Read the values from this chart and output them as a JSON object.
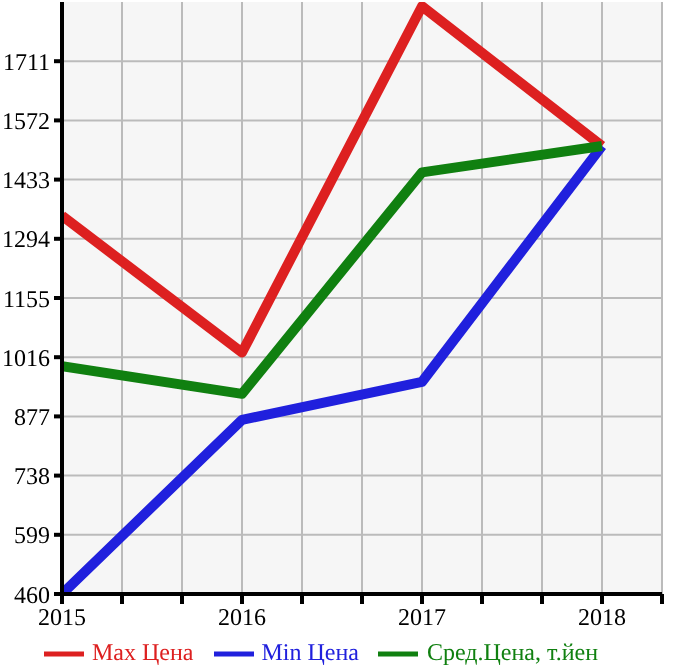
{
  "chart_data": {
    "type": "line",
    "x": [
      2015,
      2016,
      2017,
      2018
    ],
    "series": [
      {
        "name": "Max Цена",
        "color": "#dd2020",
        "values": [
          1348,
          1027,
          1840,
          1512
        ]
      },
      {
        "name": "Min Цена",
        "color": "#2020dd",
        "values": [
          460,
          869,
          958,
          1512
        ]
      },
      {
        "name": "Сред.Цена, т.йен",
        "color": "#108010",
        "values": [
          995,
          930,
          1450,
          1512
        ]
      }
    ],
    "xlim": [
      2015,
      2018.3333
    ],
    "xticks": [
      2015,
      {
        "value": 2015.3333,
        "label": null
      },
      {
        "value": 2015.6667,
        "label": null
      },
      2016,
      {
        "value": 2016.3333,
        "label": null
      },
      {
        "value": 2016.6667,
        "label": null
      },
      2017,
      {
        "value": 2017.3333,
        "label": null
      },
      {
        "value": 2017.6667,
        "label": null
      },
      2018,
      {
        "value": 2018.3333,
        "label": null
      }
    ],
    "ylim": [
      460,
      1850
    ],
    "yticks": [
      460,
      599,
      738,
      877,
      1016,
      1155,
      1294,
      1433,
      1572,
      1711
    ],
    "grid": true,
    "legend": "bottom",
    "marker": "none",
    "line_style": "solid"
  }
}
